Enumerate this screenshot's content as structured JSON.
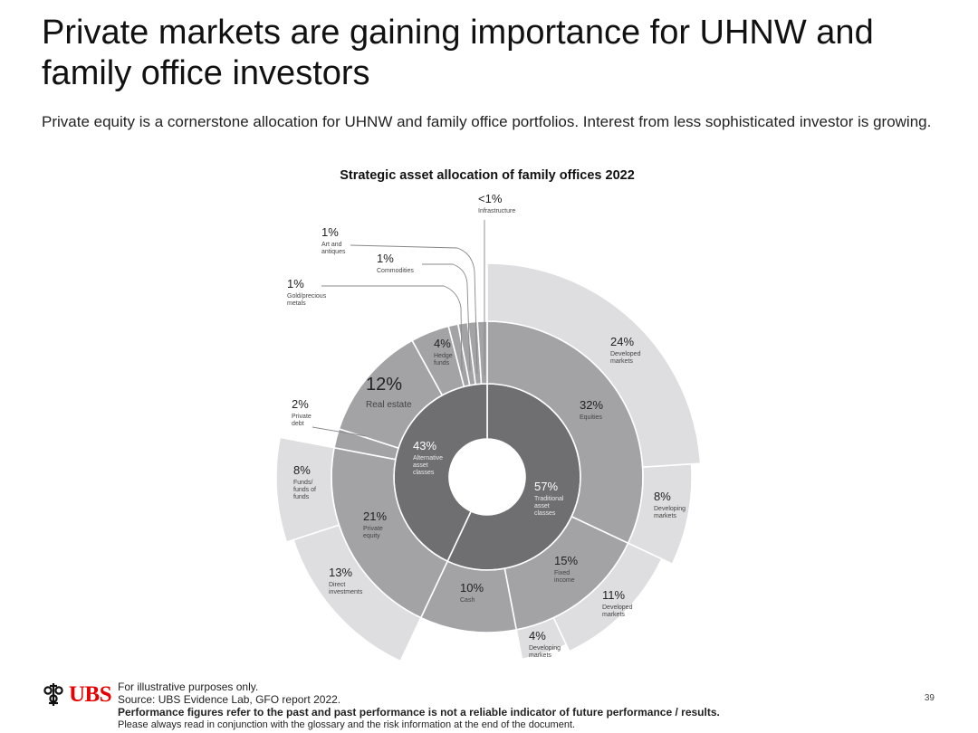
{
  "slide": {
    "title": "Private markets are gaining importance for UHNW and family office investors",
    "subtitle": "Private equity is a cornerstone allocation for UHNW and family office portfolios. Interest from less sophisticated investor is growing.",
    "page_number": "39"
  },
  "footer": {
    "brand": "UBS",
    "logo_icon": "ubs-keys-icon",
    "line1": "For illustrative purposes only.",
    "line2": "Source: UBS Evidence Lab, GFO report 2022.",
    "line3": "Performance figures refer to the past and past performance is not a reliable indicator of future performance / results.",
    "line4": "Please always read in conjunction with the glossary and the risk information at the end of the document."
  },
  "chart_data": {
    "type": "sunburst",
    "title": "Strategic asset allocation of family offices 2022",
    "colors": {
      "inner": "#6f6e71",
      "middle": "#a3a2a5",
      "outer": "#dedddf",
      "stroke": "#ffffff"
    },
    "inner_ring": [
      {
        "value": "57%",
        "label": "Traditional asset classes",
        "share": 57
      },
      {
        "value": "43%",
        "label": "Alternative asset classes",
        "share": 43
      }
    ],
    "middle_ring": [
      {
        "value": "32%",
        "label": "Equities",
        "share": 32
      },
      {
        "value": "15%",
        "label": "Fixed income",
        "share": 15
      },
      {
        "value": "10%",
        "label": "Cash",
        "share": 10
      },
      {
        "value": "21%",
        "label": "Private equity",
        "share": 21
      },
      {
        "value": "2%",
        "label": "Private debt",
        "share": 2
      },
      {
        "value": "12%",
        "label": "Real estate",
        "share": 12
      },
      {
        "value": "4%",
        "label": "Hedge funds",
        "share": 4
      },
      {
        "value": "1%",
        "label": "Gold/precious metals",
        "share": 1
      },
      {
        "value": "1%",
        "label": "Commodities",
        "share": 1
      },
      {
        "value": "1%",
        "label": "Art and antiques",
        "share": 1
      },
      {
        "value": "<1%",
        "label": "Infrastructure",
        "share": 1
      }
    ],
    "outer_ring": [
      {
        "value": "24%",
        "label": "Developed markets",
        "share": 24,
        "parent": "Equities"
      },
      {
        "value": "8%",
        "label": "Developing markets",
        "share": 8,
        "parent": "Equities"
      },
      {
        "value": "11%",
        "label": "Developed markets",
        "share": 11,
        "parent": "Fixed income"
      },
      {
        "value": "4%",
        "label": "Developing markets",
        "share": 4,
        "parent": "Fixed income"
      },
      {
        "value": "13%",
        "label": "Direct investments",
        "share": 13,
        "parent": "Private equity"
      },
      {
        "value": "8%",
        "label": "Funds/ funds of funds",
        "share": 8,
        "parent": "Private equity"
      }
    ]
  }
}
